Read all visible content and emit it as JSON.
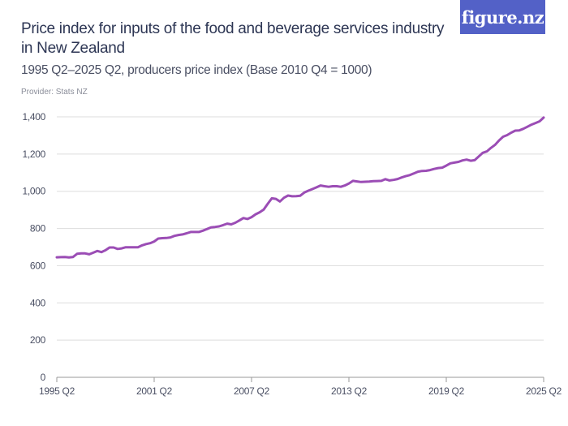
{
  "header": {
    "title": "Price index for inputs of the food and beverage services industry in New Zealand",
    "subtitle": "1995 Q2–2025 Q2, producers price index (Base 2010 Q4 = 1000)",
    "provider": "Provider: Stats NZ",
    "logo_text": "figure.nz"
  },
  "colors": {
    "line": "#9b4db5",
    "logo_bg": "#5361c7",
    "title": "#2d3654",
    "grid": "#dddddd"
  },
  "chart_data": {
    "type": "line",
    "title": "Price index for inputs of the food and beverage services industry in New Zealand",
    "subtitle": "1995 Q2–2025 Q2, producers price index (Base 2010 Q4 = 1000)",
    "xlabel": "",
    "ylabel": "",
    "x_range": [
      "1995 Q2",
      "2025 Q2"
    ],
    "x_frequency": "quarterly",
    "ylim": [
      0,
      1400
    ],
    "grid": true,
    "y_ticks": [
      0,
      200,
      400,
      600,
      800,
      1000,
      1200,
      1400
    ],
    "y_tick_labels": [
      "0",
      "200",
      "400",
      "600",
      "800",
      "1,000",
      "1,200",
      "1,400"
    ],
    "x_tick_labels": [
      "1995 Q2",
      "2001 Q2",
      "2007 Q2",
      "2013 Q2",
      "2019 Q2",
      "2025 Q2"
    ],
    "series": [
      {
        "values": [
          645,
          646,
          647,
          644,
          647,
          664,
          666,
          666,
          661,
          670,
          679,
          673,
          683,
          698,
          698,
          690,
          693,
          699,
          699,
          699,
          699,
          709,
          716,
          721,
          730,
          746,
          748,
          749,
          752,
          760,
          765,
          768,
          774,
          781,
          781,
          781,
          788,
          797,
          806,
          808,
          811,
          818,
          826,
          822,
          831,
          843,
          856,
          851,
          861,
          876,
          887,
          902,
          933,
          962,
          959,
          945,
          965,
          977,
          973,
          974,
          976,
          993,
          1003,
          1012,
          1021,
          1031,
          1027,
          1024,
          1027,
          1027,
          1024,
          1031,
          1042,
          1056,
          1053,
          1050,
          1051,
          1052,
          1054,
          1055,
          1056,
          1065,
          1058,
          1061,
          1066,
          1074,
          1081,
          1087,
          1096,
          1105,
          1109,
          1110,
          1114,
          1120,
          1125,
          1127,
          1138,
          1150,
          1154,
          1158,
          1166,
          1170,
          1164,
          1167,
          1187,
          1207,
          1214,
          1233,
          1249,
          1273,
          1293,
          1302,
          1315,
          1326,
          1327,
          1336,
          1347,
          1358,
          1367,
          1376,
          1396
        ]
      }
    ]
  }
}
